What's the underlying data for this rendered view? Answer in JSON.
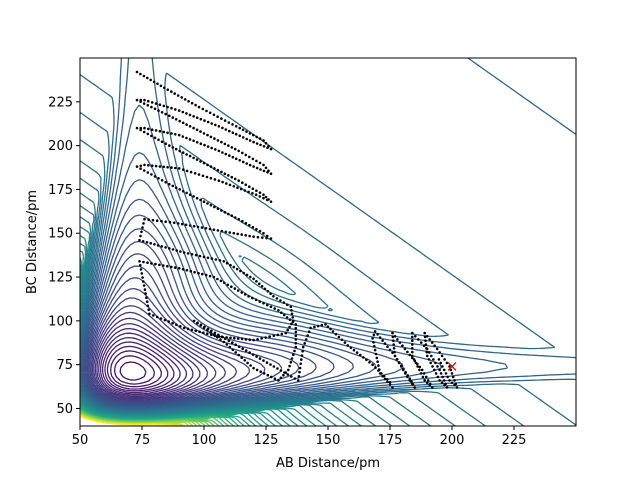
{
  "chart_data": {
    "type": "contour",
    "xlabel": "AB Distance/pm",
    "ylabel": "BC Distance/pm",
    "xlim": [
      50,
      250
    ],
    "ylim": [
      40,
      250
    ],
    "x_ticks": [
      50,
      75,
      100,
      125,
      150,
      175,
      200,
      225
    ],
    "y_ticks": [
      50,
      75,
      100,
      125,
      150,
      175,
      200,
      225
    ],
    "colormap": "viridis",
    "series": [
      {
        "type": "trajectory",
        "color": "#000000",
        "points": [
          [
            73,
            242
          ],
          [
            84,
            233
          ],
          [
            98,
            222
          ],
          [
            113,
            211
          ],
          [
            124,
            203
          ],
          [
            127,
            198
          ],
          [
            120,
            202
          ],
          [
            106,
            211
          ],
          [
            90,
            220
          ],
          [
            76,
            226
          ],
          [
            73,
            226
          ],
          [
            86,
            217
          ],
          [
            100,
            207
          ],
          [
            114,
            197
          ],
          [
            124,
            189
          ],
          [
            127,
            184
          ],
          [
            120,
            188
          ],
          [
            106,
            197
          ],
          [
            90,
            206
          ],
          [
            76,
            210
          ],
          [
            73,
            210
          ],
          [
            86,
            200
          ],
          [
            100,
            190
          ],
          [
            114,
            180
          ],
          [
            124,
            172
          ],
          [
            127,
            168
          ],
          [
            121,
            172
          ],
          [
            106,
            180
          ],
          [
            90,
            187
          ],
          [
            76,
            189
          ],
          [
            73,
            188
          ],
          [
            86,
            178
          ],
          [
            100,
            168
          ],
          [
            114,
            158
          ],
          [
            124,
            150
          ],
          [
            127,
            147
          ],
          [
            120,
            148
          ],
          [
            104,
            152
          ],
          [
            88,
            156
          ],
          [
            76,
            158
          ],
          [
            74,
            146
          ],
          [
            92,
            139
          ],
          [
            108,
            134
          ],
          [
            120,
            124
          ],
          [
            128,
            114
          ],
          [
            135,
            108
          ],
          [
            136,
            100
          ],
          [
            133,
            93
          ],
          [
            120,
            89
          ],
          [
            106,
            91
          ],
          [
            92,
            96
          ],
          [
            78,
            104
          ],
          [
            74,
            134
          ],
          [
            90,
            130
          ],
          [
            104,
            125
          ],
          [
            118,
            114
          ],
          [
            130,
            106
          ],
          [
            137,
            98
          ],
          [
            137,
            85
          ],
          [
            134,
            72
          ],
          [
            130,
            66
          ],
          [
            120,
            73
          ],
          [
            108,
            88
          ],
          [
            96,
            100
          ],
          [
            138,
            66
          ],
          [
            140,
            85
          ],
          [
            143,
            96
          ],
          [
            149,
            98
          ],
          [
            152,
            94
          ],
          [
            158,
            86
          ],
          [
            168,
            75
          ],
          [
            175,
            65
          ],
          [
            176,
            62
          ],
          [
            171,
            70
          ],
          [
            168,
            90
          ],
          [
            169,
            94
          ],
          [
            177,
            80
          ],
          [
            182,
            68
          ],
          [
            185,
            62
          ],
          [
            183,
            67
          ],
          [
            177,
            80
          ],
          [
            176,
            93
          ],
          [
            181,
            84
          ],
          [
            188,
            72
          ],
          [
            192,
            62
          ],
          [
            189,
            66
          ],
          [
            184,
            80
          ],
          [
            184,
            93
          ],
          [
            190,
            84
          ],
          [
            195,
            72
          ],
          [
            198,
            62
          ],
          [
            195,
            66
          ],
          [
            190,
            80
          ],
          [
            189,
            93
          ],
          [
            194,
            84
          ],
          [
            199,
            74
          ],
          [
            202,
            62
          ],
          [
            199,
            66
          ],
          [
            194,
            80
          ]
        ]
      },
      {
        "type": "marker",
        "marker": "x",
        "color": "#e8000b",
        "points": [
          [
            200,
            74
          ]
        ]
      }
    ]
  }
}
